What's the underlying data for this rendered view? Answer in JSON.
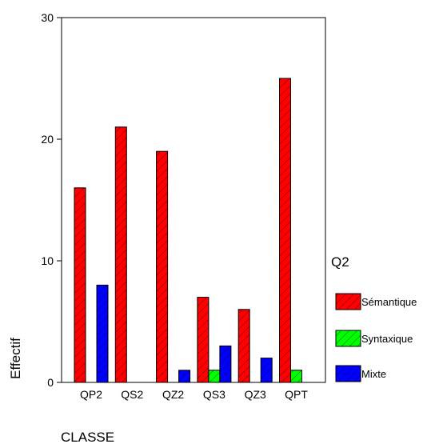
{
  "chart_data": {
    "type": "bar",
    "xlabel": "CLASSE",
    "ylabel": "Effectif",
    "ylim": [
      0,
      30
    ],
    "yticks": [
      0,
      10,
      20,
      30
    ],
    "categories": [
      "QP2",
      "QS2",
      "QZ2",
      "QS3",
      "QZ3",
      "QPT"
    ],
    "legend_title": "Q2",
    "legend_position": "right",
    "series": [
      {
        "name": "Sémantique",
        "color": "#ff0000",
        "values": [
          16,
          21,
          19,
          7,
          6,
          25
        ]
      },
      {
        "name": "Syntaxique",
        "color": "#00ff00",
        "values": [
          0,
          0,
          0,
          1,
          0,
          1
        ]
      },
      {
        "name": "Mixte",
        "color": "#0000ff",
        "values": [
          8,
          0,
          1,
          3,
          2,
          0
        ]
      }
    ]
  }
}
